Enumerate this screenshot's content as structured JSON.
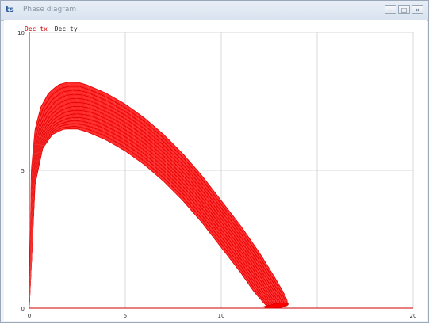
{
  "window": {
    "title": "Phase diagram",
    "icon": "app-icon",
    "controls": [
      "minimize",
      "maximize",
      "close"
    ]
  },
  "legend": {
    "series": [
      {
        "label": "Dec_tx",
        "color": "#cc0000"
      },
      {
        "label": "Dec_ty",
        "color": "#222222"
      }
    ]
  },
  "colors": {
    "series": "#ff0000",
    "grid": "#d8d8d8",
    "axis": "#cc0000"
  },
  "chart_data": {
    "type": "line",
    "xlim": [
      0,
      20
    ],
    "ylim": [
      0,
      10
    ],
    "x_ticks": [
      0,
      5,
      10,
      20
    ],
    "y_ticks": [
      0,
      5,
      10
    ],
    "grid": true,
    "series": [
      {
        "name": "Dec_tx",
        "note": "phase trajectory (spiral band)",
        "outer": {
          "x": [
            0.0,
            0.1,
            0.3,
            0.6,
            1.0,
            1.5,
            2.0,
            2.5,
            3.0,
            4.0,
            5.0,
            6.0,
            7.0,
            8.0,
            9.0,
            10.0,
            11.0,
            12.0,
            12.8,
            13.3,
            13.5,
            13.3,
            13.0
          ],
          "y": [
            0.0,
            5.0,
            6.5,
            7.3,
            7.8,
            8.1,
            8.2,
            8.2,
            8.1,
            7.8,
            7.4,
            6.9,
            6.3,
            5.6,
            4.8,
            3.9,
            3.0,
            2.0,
            1.1,
            0.5,
            0.15,
            0.05,
            0.02
          ]
        },
        "inner": {
          "x": [
            0.1,
            0.3,
            0.7,
            1.2,
            1.8,
            2.5,
            3.0,
            4.0,
            5.0,
            6.0,
            7.0,
            8.0,
            9.0,
            10.0,
            11.0,
            11.7,
            12.2,
            12.4,
            12.5
          ],
          "y": [
            1.5,
            4.5,
            5.8,
            6.3,
            6.5,
            6.5,
            6.4,
            6.1,
            5.7,
            5.2,
            4.6,
            3.9,
            3.1,
            2.2,
            1.3,
            0.6,
            0.2,
            0.05,
            0.0
          ]
        }
      }
    ]
  }
}
